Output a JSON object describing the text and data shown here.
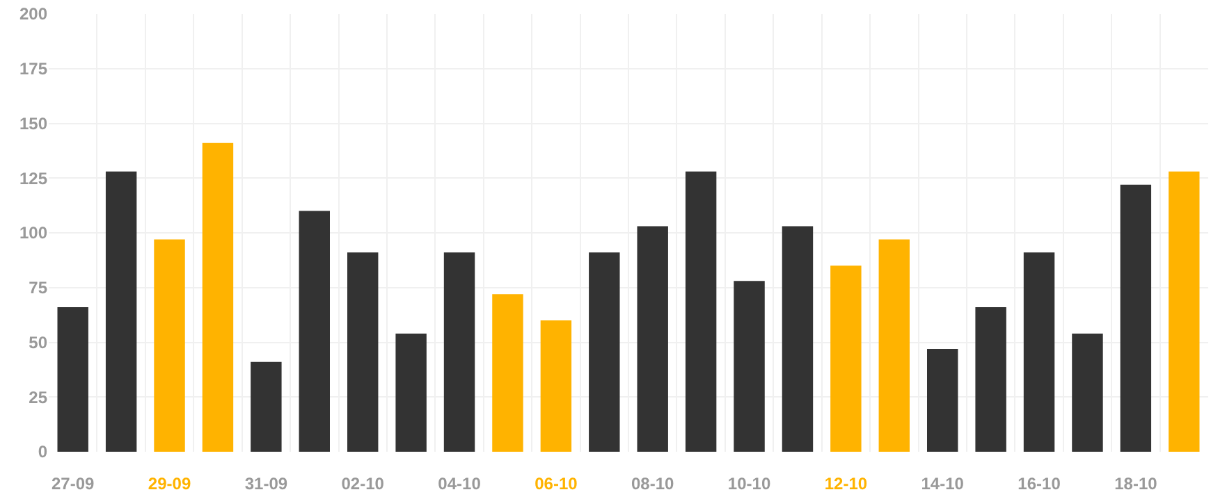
{
  "chart_data": {
    "type": "bar",
    "categories": [
      "27-09",
      null,
      "29-09",
      null,
      "31-09",
      null,
      "02-10",
      null,
      "04-10",
      null,
      "06-10",
      null,
      "08-10",
      null,
      "10-10",
      null,
      "12-10",
      null,
      "14-10",
      null,
      "16-10",
      null,
      "18-10",
      null
    ],
    "values": [
      66,
      128,
      97,
      141,
      41,
      110,
      91,
      54,
      91,
      72,
      60,
      91,
      103,
      128,
      78,
      103,
      85,
      97,
      47,
      66,
      91,
      54,
      122,
      128
    ],
    "colors": [
      "#333333",
      "#333333",
      "#ffb300",
      "#ffb300",
      "#333333",
      "#333333",
      "#333333",
      "#333333",
      "#333333",
      "#ffb300",
      "#ffb300",
      "#333333",
      "#333333",
      "#333333",
      "#333333",
      "#333333",
      "#ffb300",
      "#ffb300",
      "#333333",
      "#333333",
      "#333333",
      "#333333",
      "#333333",
      "#ffb300"
    ],
    "ylim": [
      0,
      200
    ],
    "yticks": [
      0,
      25,
      50,
      75,
      100,
      125,
      150,
      175,
      200
    ],
    "grid": true
  }
}
